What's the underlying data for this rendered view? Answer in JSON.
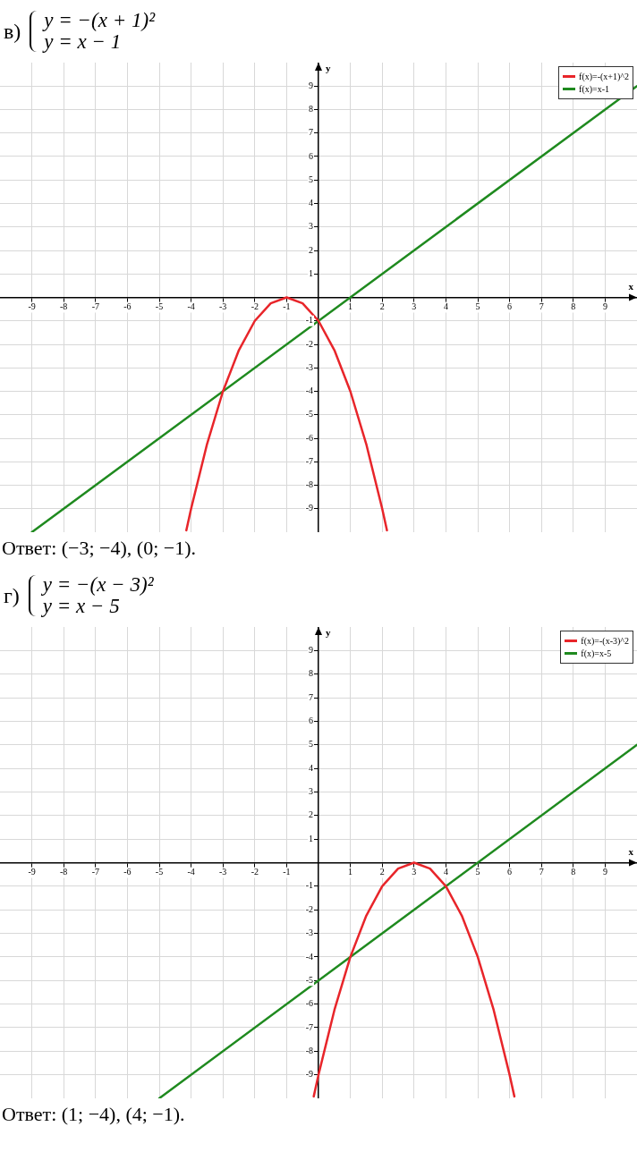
{
  "chart_data": [
    {
      "type": "line",
      "title": "в)",
      "subtitle": "y = −(x + 1)²\ny = x − 1",
      "xlabel": "x",
      "ylabel": "y",
      "xlim": [
        -10,
        10
      ],
      "ylim": [
        -10,
        10
      ],
      "xticks": [
        -9,
        -8,
        -7,
        -6,
        -5,
        -4,
        -3,
        -2,
        -1,
        1,
        2,
        3,
        4,
        5,
        6,
        7,
        8,
        9
      ],
      "yticks": [
        -9,
        -8,
        -7,
        -6,
        -5,
        -4,
        -3,
        -2,
        -1,
        1,
        2,
        3,
        4,
        5,
        6,
        7,
        8,
        9
      ],
      "grid": true,
      "legend": "top right",
      "marker": "none",
      "series": [
        {
          "name": "f(x)=-(x+1)^2",
          "color": "#e8252a",
          "x": [
            -4.15,
            -4,
            -3.5,
            -3,
            -2.5,
            -2,
            -1.5,
            -1,
            -0.5,
            0,
            0.5,
            1,
            1.5,
            2,
            2.15
          ],
          "values": [
            -9.92,
            -9,
            -6.25,
            -4,
            -2.25,
            -1,
            -0.25,
            0,
            -0.25,
            -1,
            -2.25,
            -4,
            -6.25,
            -9,
            -9.92
          ]
        },
        {
          "name": "f(x)=x-1",
          "color": "#1f8a1f",
          "x": [
            -9,
            10
          ],
          "values": [
            -10,
            9
          ]
        }
      ],
      "annotations": [
        "Ответ: (−3; −4), (0; −1)."
      ]
    },
    {
      "type": "line",
      "title": "г)",
      "subtitle": "y = −(x − 3)²\ny = x − 5",
      "xlabel": "x",
      "ylabel": "y",
      "xlim": [
        -10,
        10
      ],
      "ylim": [
        -10,
        10
      ],
      "xticks": [
        -9,
        -8,
        -7,
        -6,
        -5,
        -4,
        -3,
        -2,
        -1,
        1,
        2,
        3,
        4,
        5,
        6,
        7,
        8,
        9
      ],
      "yticks": [
        -9,
        -8,
        -7,
        -6,
        -5,
        -4,
        -3,
        -2,
        -1,
        1,
        2,
        3,
        4,
        5,
        6,
        7,
        8,
        9
      ],
      "grid": true,
      "legend": "top right",
      "marker": "none",
      "series": [
        {
          "name": "f(x)=-(x-3)^2",
          "color": "#e8252a",
          "x": [
            -0.15,
            0,
            0.5,
            1,
            1.5,
            2,
            2.5,
            3,
            3.5,
            4,
            4.5,
            5,
            5.5,
            6,
            6.15
          ],
          "values": [
            -9.92,
            -9,
            -6.25,
            -4,
            -2.25,
            -1,
            -0.25,
            0,
            -0.25,
            -1,
            -2.25,
            -4,
            -6.25,
            -9,
            -9.92
          ]
        },
        {
          "name": "f(x)=x-5",
          "color": "#1f8a1f",
          "x": [
            -5,
            10
          ],
          "values": [
            -10,
            5
          ]
        }
      ],
      "annotations": [
        "Ответ: (1; −4), (4; −1)."
      ]
    }
  ]
}
